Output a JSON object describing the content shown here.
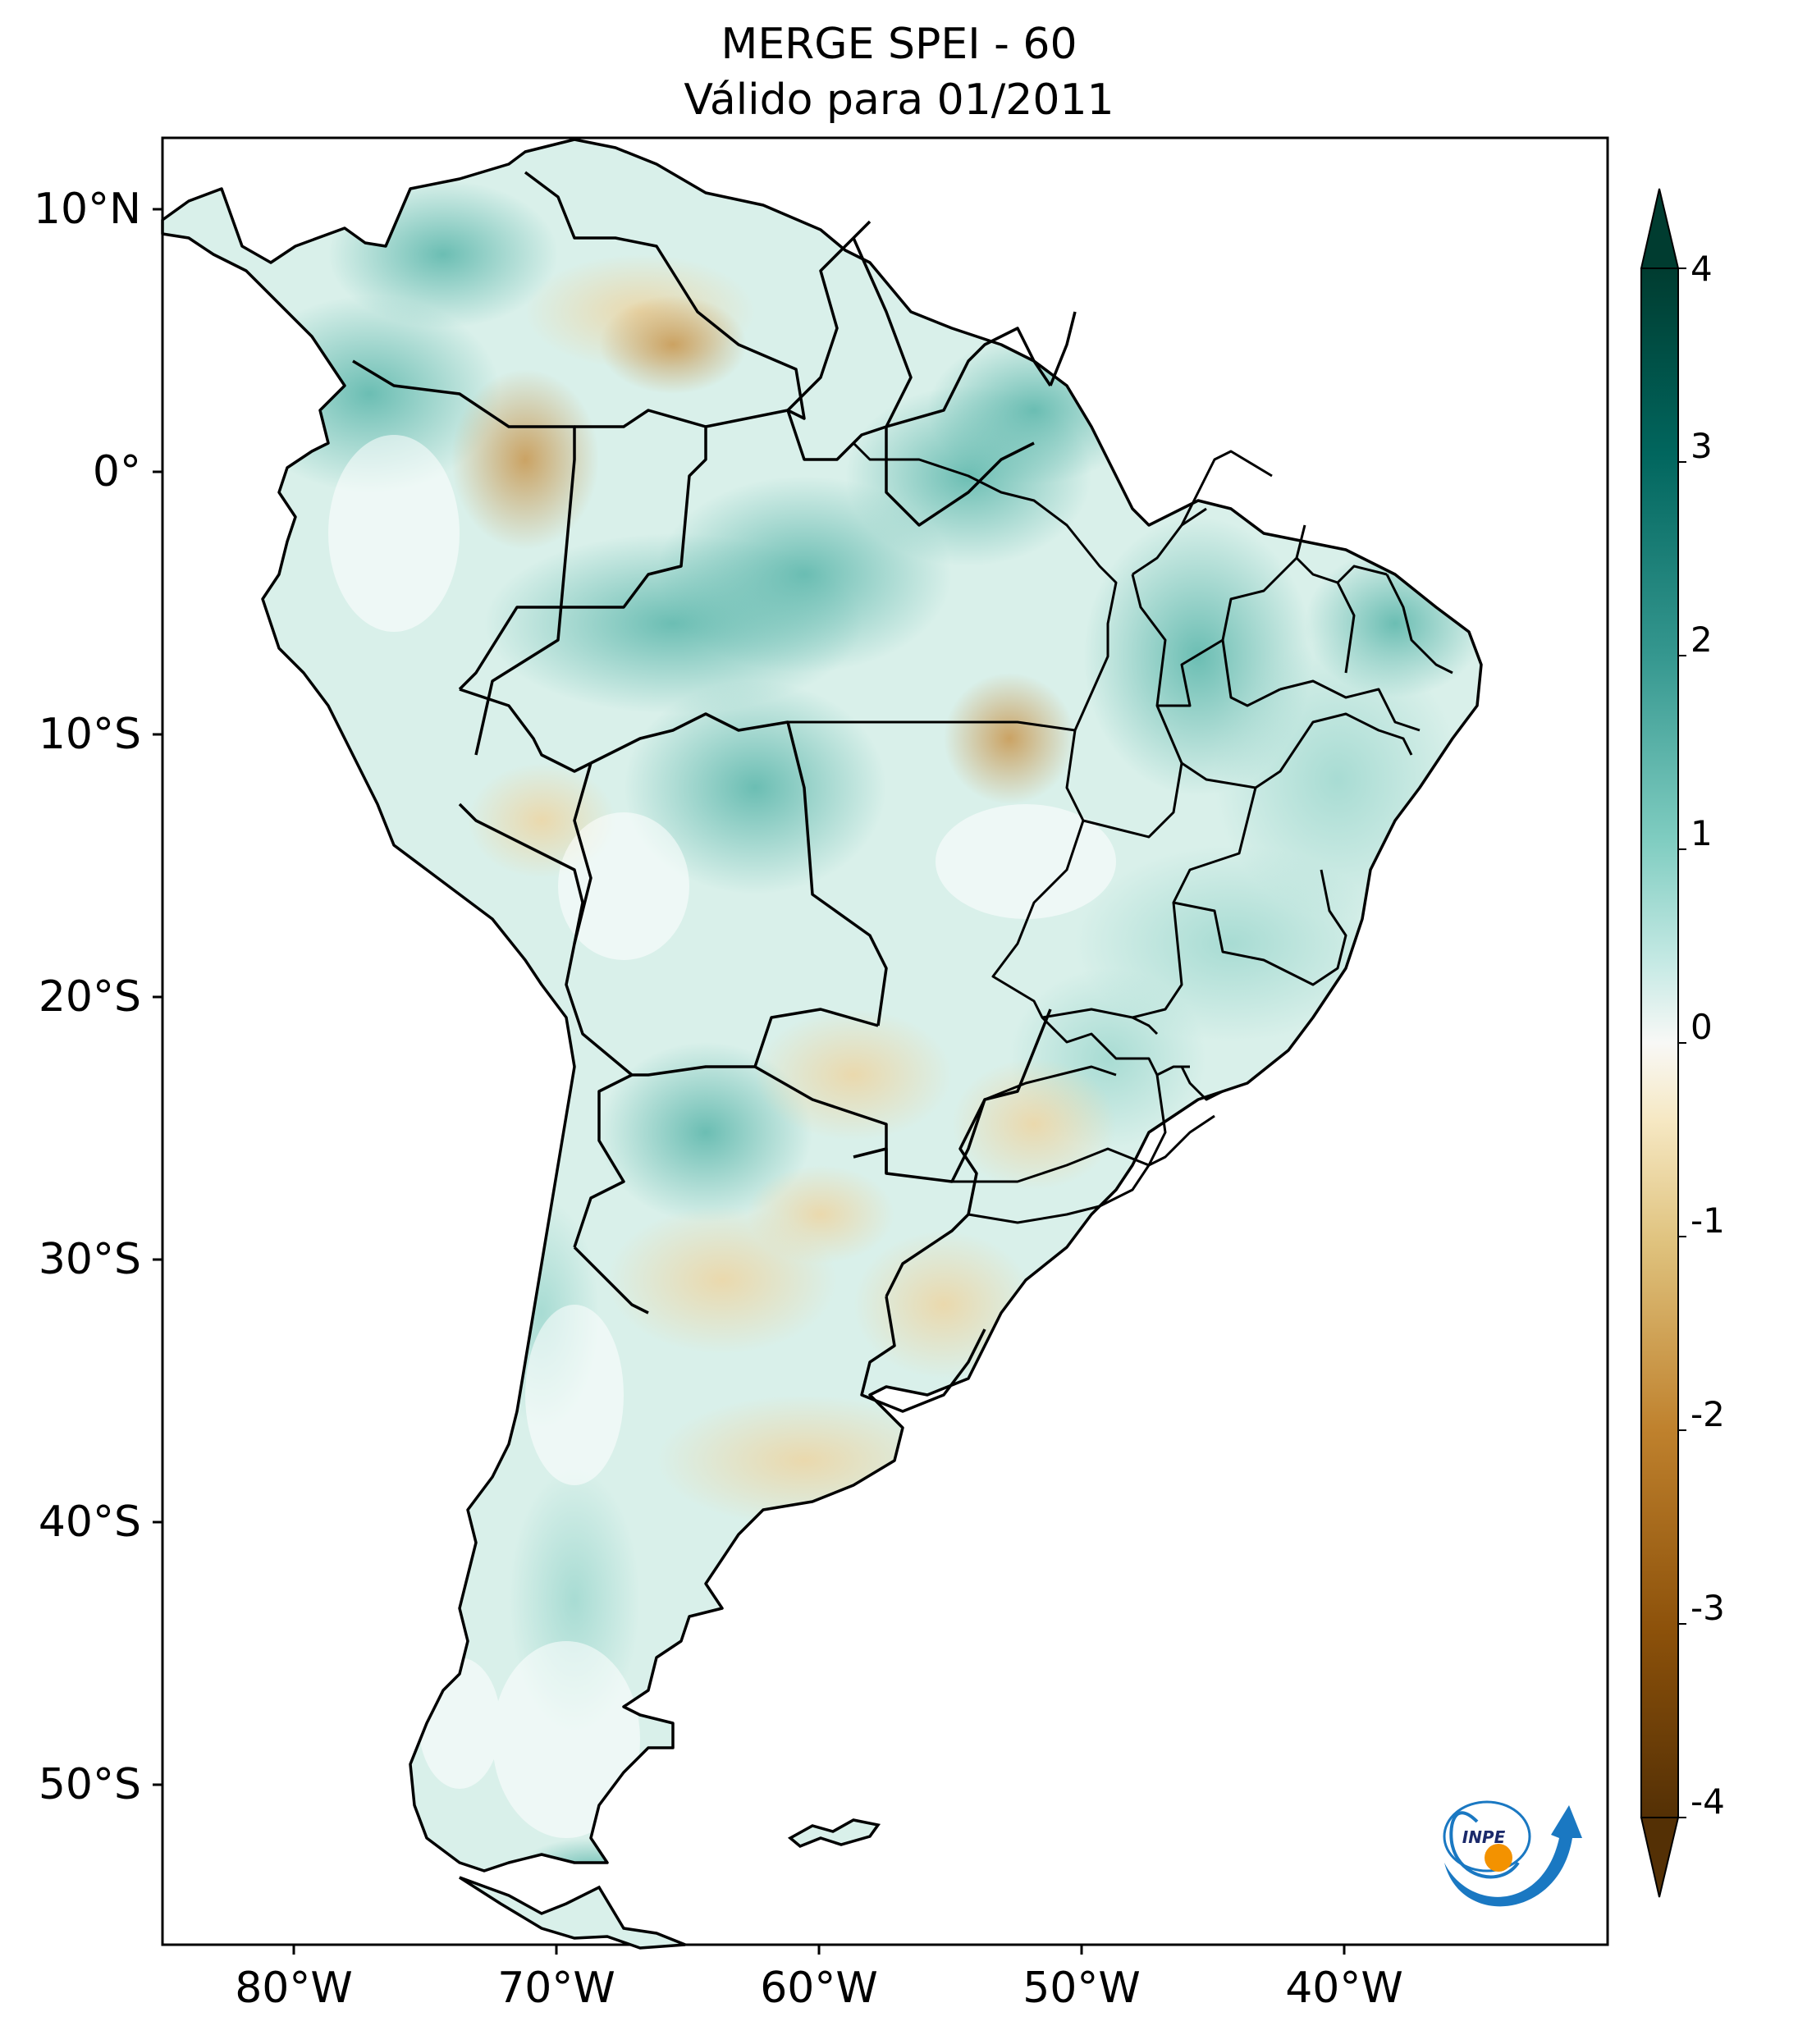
{
  "title": {
    "line1": "MERGE   SPEI - 60",
    "line2": "Válido para 01/2011"
  },
  "map": {
    "lat_ticks": [
      "10°N",
      "0°",
      "10°S",
      "20°S",
      "30°S",
      "40°S",
      "50°S"
    ],
    "lon_ticks": [
      "80°W",
      "70°W",
      "60°W",
      "50°W",
      "40°W"
    ],
    "extent": {
      "lon_min": -85,
      "lon_max": -30,
      "lat_min": -56,
      "lat_max": 13
    }
  },
  "colorbar": {
    "ticks": [
      "4",
      "3",
      "2",
      "1",
      "0",
      "-1",
      "-2",
      "-3",
      "-4"
    ],
    "vmin": -4,
    "vmax": 4,
    "colormap": "BrBG",
    "colors": {
      "wet_max": "#003c30",
      "wet_mid": "#35978f",
      "wet_light": "#c7eae5",
      "neutral": "#f5f5f5",
      "dry_light": "#f6e8c3",
      "dry_mid": "#bf812d",
      "dry_max": "#543005"
    }
  },
  "logo": {
    "text": "INPE",
    "colors": {
      "arc": "#1a78c2",
      "dot": "#f39200"
    }
  }
}
